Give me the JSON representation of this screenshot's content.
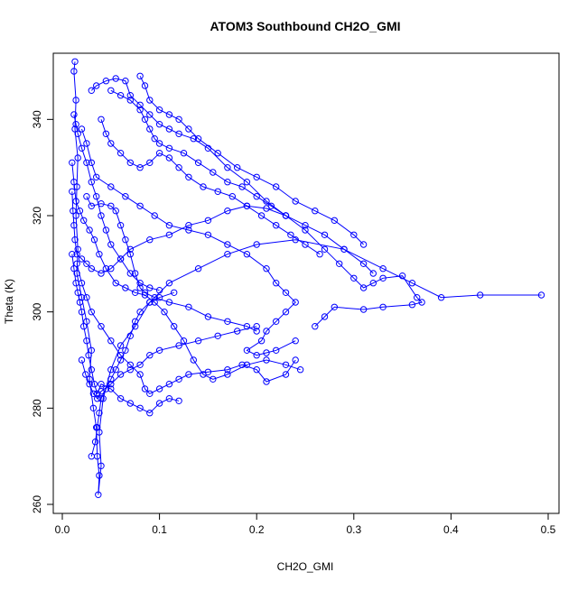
{
  "chart_data": {
    "type": "scatter",
    "title": "ATOM3 Southbound CH2O_GMI",
    "xlabel": "CH2O_GMI",
    "ylabel": "Theta (K)",
    "xlim": [
      0,
      0.5
    ],
    "ylim": [
      260,
      350
    ],
    "xticks": [
      0,
      0.1,
      0.2,
      0.3,
      0.4,
      0.5
    ],
    "xtick_labels": [
      "0.0",
      "0.1",
      "0.2",
      "0.3",
      "0.4",
      "0.5"
    ],
    "yticks": [
      260,
      280,
      300,
      320,
      340
    ],
    "ytick_labels": [
      "260",
      "280",
      "300",
      "320",
      "340"
    ],
    "grid": false,
    "legend": "none",
    "point_style": "open-circle-with-connecting-lines",
    "color": "#0000ff",
    "series": [
      {
        "points": [
          [
            0.013,
            352
          ],
          [
            0.012,
            350
          ],
          [
            0.014,
            344
          ],
          [
            0.013,
            338
          ],
          [
            0.016,
            332
          ],
          [
            0.015,
            326
          ],
          [
            0.014,
            320
          ],
          [
            0.016,
            313
          ],
          [
            0.015,
            308
          ],
          [
            0.02,
            303
          ],
          [
            0.025,
            298
          ],
          [
            0.03,
            292
          ],
          [
            0.028,
            286
          ],
          [
            0.032,
            280
          ],
          [
            0.035,
            276
          ],
          [
            0.036,
            270
          ],
          [
            0.038,
            266
          ],
          [
            0.037,
            262
          ],
          [
            0.04,
            268
          ],
          [
            0.038,
            275
          ],
          [
            0.042,
            282
          ],
          [
            0.05,
            288
          ],
          [
            0.06,
            293
          ],
          [
            0.075,
            297
          ],
          [
            0.09,
            302
          ],
          [
            0.11,
            306
          ],
          [
            0.14,
            309
          ],
          [
            0.17,
            312
          ],
          [
            0.2,
            314
          ],
          [
            0.24,
            315
          ],
          [
            0.29,
            313
          ],
          [
            0.33,
            309
          ],
          [
            0.36,
            306
          ],
          [
            0.39,
            303
          ],
          [
            0.43,
            303.5
          ],
          [
            0.493,
            303.5
          ]
        ]
      },
      {
        "points": [
          [
            0.03,
            346
          ],
          [
            0.035,
            347
          ],
          [
            0.045,
            348
          ],
          [
            0.055,
            348.5
          ],
          [
            0.065,
            348
          ],
          [
            0.07,
            345
          ],
          [
            0.08,
            343
          ],
          [
            0.09,
            341
          ],
          [
            0.1,
            339
          ],
          [
            0.11,
            338
          ],
          [
            0.12,
            337
          ],
          [
            0.135,
            336
          ],
          [
            0.15,
            334
          ],
          [
            0.17,
            330
          ],
          [
            0.19,
            327
          ],
          [
            0.21,
            323
          ],
          [
            0.23,
            320
          ],
          [
            0.25,
            317
          ],
          [
            0.27,
            313
          ],
          [
            0.285,
            310
          ],
          [
            0.3,
            307
          ],
          [
            0.31,
            305
          ],
          [
            0.32,
            306
          ],
          [
            0.33,
            307
          ],
          [
            0.35,
            307.5
          ],
          [
            0.365,
            303
          ],
          [
            0.37,
            302
          ],
          [
            0.36,
            301.5
          ],
          [
            0.33,
            301
          ],
          [
            0.31,
            300.5
          ],
          [
            0.28,
            301
          ],
          [
            0.27,
            299
          ],
          [
            0.26,
            297
          ]
        ]
      },
      {
        "points": [
          [
            0.02,
            338
          ],
          [
            0.025,
            335
          ],
          [
            0.03,
            331
          ],
          [
            0.035,
            328
          ],
          [
            0.05,
            326
          ],
          [
            0.065,
            324
          ],
          [
            0.08,
            322
          ],
          [
            0.095,
            320
          ],
          [
            0.11,
            318
          ],
          [
            0.13,
            317
          ],
          [
            0.15,
            316
          ],
          [
            0.17,
            314
          ],
          [
            0.19,
            312
          ],
          [
            0.21,
            309
          ],
          [
            0.22,
            306
          ],
          [
            0.23,
            304
          ],
          [
            0.24,
            302
          ],
          [
            0.23,
            300
          ],
          [
            0.22,
            298
          ],
          [
            0.21,
            296
          ],
          [
            0.205,
            294
          ],
          [
            0.19,
            292
          ],
          [
            0.2,
            291
          ],
          [
            0.21,
            291.5
          ],
          [
            0.22,
            292
          ],
          [
            0.24,
            294
          ]
        ]
      },
      {
        "points": [
          [
            0.01,
            331
          ],
          [
            0.012,
            327
          ],
          [
            0.014,
            323
          ],
          [
            0.018,
            321
          ],
          [
            0.022,
            319
          ],
          [
            0.028,
            317
          ],
          [
            0.033,
            315
          ],
          [
            0.038,
            312
          ],
          [
            0.045,
            309
          ],
          [
            0.055,
            306
          ],
          [
            0.065,
            305
          ],
          [
            0.075,
            304
          ],
          [
            0.085,
            303.5
          ],
          [
            0.095,
            302
          ],
          [
            0.105,
            300
          ],
          [
            0.115,
            297
          ],
          [
            0.125,
            294
          ],
          [
            0.135,
            290
          ],
          [
            0.145,
            287
          ],
          [
            0.155,
            286
          ],
          [
            0.17,
            287
          ],
          [
            0.19,
            289
          ],
          [
            0.21,
            290
          ],
          [
            0.23,
            289
          ],
          [
            0.245,
            288
          ]
        ]
      },
      {
        "points": [
          [
            0.015,
            310
          ],
          [
            0.02,
            306
          ],
          [
            0.025,
            303
          ],
          [
            0.03,
            300
          ],
          [
            0.04,
            297
          ],
          [
            0.05,
            294
          ],
          [
            0.06,
            291
          ],
          [
            0.07,
            289
          ],
          [
            0.08,
            287
          ],
          [
            0.085,
            284
          ],
          [
            0.09,
            283
          ],
          [
            0.1,
            284
          ],
          [
            0.11,
            285
          ],
          [
            0.12,
            286
          ],
          [
            0.13,
            287
          ],
          [
            0.15,
            287.5
          ],
          [
            0.17,
            288
          ],
          [
            0.185,
            289
          ],
          [
            0.2,
            288
          ],
          [
            0.21,
            285.5
          ],
          [
            0.23,
            287
          ],
          [
            0.24,
            290
          ]
        ]
      },
      {
        "points": [
          [
            0.04,
            340
          ],
          [
            0.045,
            337
          ],
          [
            0.05,
            335
          ],
          [
            0.06,
            333
          ],
          [
            0.07,
            331
          ],
          [
            0.08,
            330
          ],
          [
            0.09,
            331
          ],
          [
            0.1,
            333
          ],
          [
            0.11,
            332
          ],
          [
            0.12,
            330
          ],
          [
            0.13,
            328
          ],
          [
            0.145,
            326
          ],
          [
            0.16,
            325
          ],
          [
            0.175,
            324
          ],
          [
            0.19,
            322
          ],
          [
            0.205,
            320
          ],
          [
            0.22,
            318
          ],
          [
            0.235,
            316
          ],
          [
            0.25,
            314
          ],
          [
            0.265,
            312
          ]
        ]
      },
      {
        "points": [
          [
            0.01,
            312
          ],
          [
            0.012,
            309
          ],
          [
            0.014,
            306
          ],
          [
            0.016,
            304
          ],
          [
            0.018,
            302
          ],
          [
            0.02,
            300
          ],
          [
            0.022,
            297
          ],
          [
            0.025,
            294
          ],
          [
            0.027,
            291
          ],
          [
            0.03,
            288
          ],
          [
            0.033,
            285
          ],
          [
            0.036,
            283
          ],
          [
            0.04,
            285
          ],
          [
            0.05,
            284
          ],
          [
            0.06,
            282
          ],
          [
            0.07,
            281
          ],
          [
            0.08,
            280
          ],
          [
            0.09,
            279
          ],
          [
            0.1,
            281
          ],
          [
            0.11,
            282
          ],
          [
            0.12,
            281.5
          ]
        ]
      },
      {
        "points": [
          [
            0.08,
            349
          ],
          [
            0.085,
            347
          ],
          [
            0.09,
            344
          ],
          [
            0.1,
            342
          ],
          [
            0.11,
            341
          ],
          [
            0.12,
            340
          ],
          [
            0.13,
            338
          ],
          [
            0.14,
            336
          ],
          [
            0.16,
            333
          ],
          [
            0.18,
            330
          ],
          [
            0.2,
            328
          ],
          [
            0.22,
            326
          ],
          [
            0.24,
            323
          ],
          [
            0.26,
            321
          ],
          [
            0.28,
            319
          ],
          [
            0.3,
            316
          ],
          [
            0.31,
            314
          ]
        ]
      },
      {
        "points": [
          [
            0.025,
            324
          ],
          [
            0.03,
            322
          ],
          [
            0.04,
            322.5
          ],
          [
            0.05,
            322
          ],
          [
            0.055,
            321
          ],
          [
            0.06,
            318
          ],
          [
            0.065,
            315
          ],
          [
            0.07,
            312
          ],
          [
            0.075,
            308
          ],
          [
            0.08,
            305
          ],
          [
            0.085,
            304
          ],
          [
            0.095,
            303
          ],
          [
            0.11,
            302
          ],
          [
            0.13,
            301
          ],
          [
            0.15,
            299
          ],
          [
            0.17,
            298
          ],
          [
            0.19,
            297
          ],
          [
            0.2,
            296
          ]
        ]
      },
      {
        "points": [
          [
            0.03,
            270
          ],
          [
            0.034,
            273
          ],
          [
            0.036,
            276
          ],
          [
            0.038,
            279
          ],
          [
            0.04,
            282
          ],
          [
            0.045,
            284
          ],
          [
            0.05,
            286
          ],
          [
            0.055,
            288
          ],
          [
            0.06,
            290
          ],
          [
            0.065,
            292
          ],
          [
            0.07,
            295
          ],
          [
            0.075,
            298
          ],
          [
            0.08,
            300
          ],
          [
            0.09,
            302
          ],
          [
            0.1,
            303
          ],
          [
            0.115,
            304
          ]
        ]
      },
      {
        "points": [
          [
            0.01,
            325
          ],
          [
            0.011,
            321
          ],
          [
            0.012,
            318
          ],
          [
            0.013,
            315
          ],
          [
            0.015,
            312
          ],
          [
            0.02,
            311
          ],
          [
            0.025,
            310
          ],
          [
            0.03,
            309
          ],
          [
            0.04,
            308
          ],
          [
            0.05,
            309
          ],
          [
            0.06,
            311
          ],
          [
            0.07,
            313
          ],
          [
            0.09,
            315
          ],
          [
            0.11,
            316
          ],
          [
            0.13,
            318
          ],
          [
            0.15,
            319
          ],
          [
            0.17,
            321
          ],
          [
            0.19,
            322
          ],
          [
            0.21,
            321.5
          ],
          [
            0.23,
            320
          ]
        ]
      },
      {
        "points": [
          [
            0.05,
            346
          ],
          [
            0.06,
            345
          ],
          [
            0.07,
            344
          ],
          [
            0.08,
            342
          ],
          [
            0.085,
            340
          ],
          [
            0.09,
            338
          ],
          [
            0.095,
            336
          ],
          [
            0.1,
            335
          ],
          [
            0.11,
            334
          ],
          [
            0.125,
            333
          ],
          [
            0.14,
            331
          ],
          [
            0.155,
            329
          ],
          [
            0.17,
            327
          ],
          [
            0.185,
            326
          ],
          [
            0.2,
            324
          ],
          [
            0.215,
            322
          ],
          [
            0.23,
            320
          ],
          [
            0.25,
            318
          ],
          [
            0.27,
            316
          ],
          [
            0.29,
            313
          ],
          [
            0.31,
            310
          ],
          [
            0.32,
            308
          ]
        ]
      },
      {
        "points": [
          [
            0.02,
            290
          ],
          [
            0.024,
            287
          ],
          [
            0.028,
            285
          ],
          [
            0.032,
            283
          ],
          [
            0.036,
            282
          ],
          [
            0.04,
            283.5
          ],
          [
            0.05,
            285
          ],
          [
            0.06,
            287
          ],
          [
            0.07,
            288
          ],
          [
            0.08,
            289
          ],
          [
            0.09,
            291
          ],
          [
            0.1,
            292
          ],
          [
            0.12,
            293
          ],
          [
            0.14,
            294
          ],
          [
            0.16,
            295
          ],
          [
            0.18,
            296
          ],
          [
            0.2,
            297
          ]
        ]
      },
      {
        "points": [
          [
            0.012,
            341
          ],
          [
            0.014,
            339
          ],
          [
            0.016,
            337
          ],
          [
            0.02,
            334
          ],
          [
            0.025,
            331
          ],
          [
            0.03,
            327
          ],
          [
            0.035,
            324
          ],
          [
            0.04,
            320
          ],
          [
            0.045,
            317
          ],
          [
            0.05,
            314
          ],
          [
            0.06,
            311
          ],
          [
            0.07,
            308
          ],
          [
            0.08,
            306
          ],
          [
            0.09,
            305
          ],
          [
            0.1,
            304.5
          ]
        ]
      }
    ]
  }
}
